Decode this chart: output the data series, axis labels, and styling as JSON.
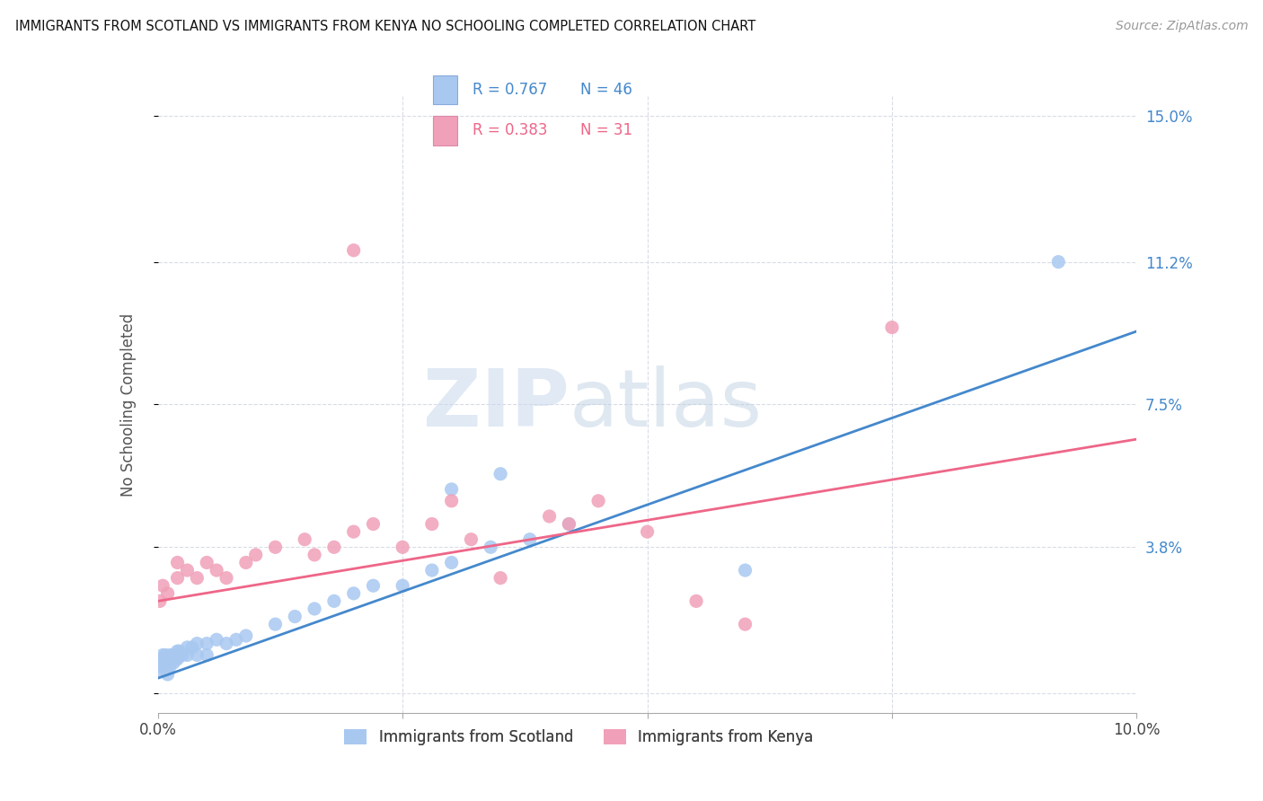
{
  "title": "IMMIGRANTS FROM SCOTLAND VS IMMIGRANTS FROM KENYA NO SCHOOLING COMPLETED CORRELATION CHART",
  "source": "Source: ZipAtlas.com",
  "ylabel": "No Schooling Completed",
  "xlim": [
    0.0,
    0.1
  ],
  "ylim": [
    -0.005,
    0.155
  ],
  "xticks": [
    0.0,
    0.025,
    0.05,
    0.075,
    0.1
  ],
  "xtick_labels": [
    "0.0%",
    "",
    "",
    "",
    "10.0%"
  ],
  "ytick_positions": [
    0.0,
    0.038,
    0.075,
    0.112,
    0.15
  ],
  "ytick_labels_right": [
    "",
    "3.8%",
    "7.5%",
    "11.2%",
    "15.0%"
  ],
  "scotland_color": "#a8c8f0",
  "kenya_color": "#f0a0b8",
  "scotland_line_color": "#4488cc",
  "kenya_line_color": "#ee6688",
  "legend_R_scotland": "0.767",
  "legend_N_scotland": "46",
  "legend_R_kenya": "0.383",
  "legend_N_kenya": "31",
  "background_color": "#ffffff",
  "grid_color": "#d8dce8",
  "scotland_x": [
    0.0002,
    0.0003,
    0.0004,
    0.0005,
    0.0006,
    0.0007,
    0.0008,
    0.0009,
    0.001,
    0.001,
    0.0012,
    0.0013,
    0.0015,
    0.0016,
    0.0018,
    0.002,
    0.002,
    0.0022,
    0.0025,
    0.003,
    0.003,
    0.0035,
    0.004,
    0.004,
    0.005,
    0.005,
    0.006,
    0.007,
    0.008,
    0.009,
    0.012,
    0.014,
    0.016,
    0.018,
    0.02,
    0.022,
    0.025,
    0.028,
    0.03,
    0.034,
    0.038,
    0.042,
    0.03,
    0.035,
    0.06,
    0.092
  ],
  "scotland_y": [
    0.006,
    0.009,
    0.007,
    0.01,
    0.008,
    0.009,
    0.01,
    0.008,
    0.005,
    0.009,
    0.007,
    0.01,
    0.01,
    0.008,
    0.009,
    0.011,
    0.009,
    0.011,
    0.01,
    0.012,
    0.01,
    0.012,
    0.013,
    0.01,
    0.013,
    0.01,
    0.014,
    0.013,
    0.014,
    0.015,
    0.018,
    0.02,
    0.022,
    0.024,
    0.026,
    0.028,
    0.028,
    0.032,
    0.034,
    0.038,
    0.04,
    0.044,
    0.053,
    0.057,
    0.032,
    0.112
  ],
  "kenya_x": [
    0.0002,
    0.0005,
    0.001,
    0.002,
    0.002,
    0.003,
    0.004,
    0.005,
    0.006,
    0.007,
    0.009,
    0.01,
    0.012,
    0.015,
    0.016,
    0.018,
    0.02,
    0.022,
    0.025,
    0.028,
    0.03,
    0.032,
    0.035,
    0.04,
    0.042,
    0.045,
    0.05,
    0.055,
    0.02,
    0.075,
    0.06
  ],
  "kenya_y": [
    0.024,
    0.028,
    0.026,
    0.03,
    0.034,
    0.032,
    0.03,
    0.034,
    0.032,
    0.03,
    0.034,
    0.036,
    0.038,
    0.04,
    0.036,
    0.038,
    0.042,
    0.044,
    0.038,
    0.044,
    0.05,
    0.04,
    0.03,
    0.046,
    0.044,
    0.05,
    0.042,
    0.024,
    0.115,
    0.095,
    0.018
  ]
}
